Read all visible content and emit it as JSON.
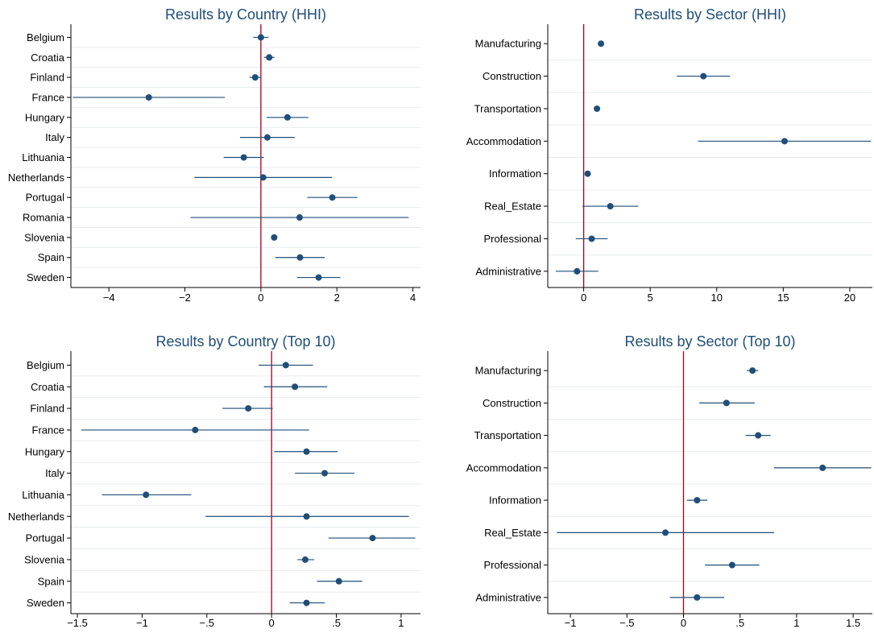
{
  "colors": {
    "background": "#ffffff",
    "plot_background": "#ffffff",
    "gridline": "#e6ebef",
    "axis": "#000000",
    "marker": "#1f4e79",
    "ci_line": "#1f4e79",
    "zero_line": "#a6001a",
    "title": "#1f4e79",
    "text": "#000000"
  },
  "chart_data": [
    {
      "id": "country-hhi",
      "type": "scatter",
      "subtype": "coefficient-plot",
      "title": "Results by Country (HHI)",
      "reference_line": 0,
      "xlim": [
        -5,
        4.2
      ],
      "xticks": [
        -4,
        -2,
        0,
        2,
        4
      ],
      "xtick_labels": [
        "−4",
        "−2",
        "0",
        "2",
        "4"
      ],
      "grid": "horizontal",
      "categories": [
        "Belgium",
        "Croatia",
        "Finland",
        "France",
        "Hungary",
        "Italy",
        "Lithuania",
        "Netherlands",
        "Portugal",
        "Romania",
        "Slovenia",
        "Spain",
        "Sweden"
      ],
      "estimates": [
        0.0,
        0.22,
        -0.15,
        -2.95,
        0.7,
        0.17,
        -0.45,
        0.06,
        1.88,
        1.02,
        0.35,
        1.03,
        1.52
      ],
      "ci_low": [
        -0.2,
        0.08,
        -0.3,
        -4.95,
        0.15,
        -0.55,
        -0.98,
        -1.75,
        1.22,
        -1.85,
        0.28,
        0.38,
        0.95
      ],
      "ci_high": [
        0.2,
        0.36,
        0.0,
        -0.95,
        1.25,
        0.89,
        0.08,
        1.87,
        2.54,
        3.89,
        0.42,
        1.68,
        2.09
      ]
    },
    {
      "id": "sector-hhi",
      "type": "scatter",
      "subtype": "coefficient-plot",
      "title": "Results by Sector (HHI)",
      "reference_line": 0,
      "xlim": [
        -2.7,
        21.7
      ],
      "xticks": [
        0,
        5,
        10,
        15,
        20
      ],
      "xtick_labels": [
        "0",
        "5",
        "10",
        "15",
        "20"
      ],
      "grid": "horizontal",
      "categories": [
        "Manufacturing",
        "Construction",
        "Transportation",
        "Accommodation",
        "Information",
        "Real_Estate",
        "Professional",
        "Administrative"
      ],
      "estimates": [
        1.3,
        9.0,
        1.0,
        15.1,
        0.3,
        2.0,
        0.6,
        -0.5
      ],
      "ci_low": [
        1.1,
        7.0,
        0.8,
        8.6,
        0.1,
        -0.1,
        -0.6,
        -2.1
      ],
      "ci_high": [
        1.5,
        11.0,
        1.2,
        21.6,
        0.5,
        4.1,
        1.8,
        1.1
      ]
    },
    {
      "id": "country-top10",
      "type": "scatter",
      "subtype": "coefficient-plot",
      "title": "Results by Country (Top 10)",
      "reference_line": 0,
      "xlim": [
        -1.55,
        1.15
      ],
      "xticks": [
        -1.5,
        -1,
        -0.5,
        0,
        0.5,
        1
      ],
      "xtick_labels": [
        "−1.5",
        "−1",
        "−.5",
        "0",
        ".5",
        "1"
      ],
      "grid": "horizontal",
      "categories": [
        "Belgium",
        "Croatia",
        "Finland",
        "France",
        "Hungary",
        "Italy",
        "Lithuania",
        "Netherlands",
        "Portugal",
        "Slovenia",
        "Spain",
        "Sweden"
      ],
      "estimates": [
        0.11,
        0.18,
        -0.18,
        -0.59,
        0.27,
        0.41,
        -0.97,
        0.27,
        0.78,
        0.26,
        0.52,
        0.27
      ],
      "ci_low": [
        -0.1,
        -0.06,
        -0.38,
        -1.47,
        0.02,
        0.18,
        -1.31,
        -0.51,
        0.44,
        0.2,
        0.35,
        0.14
      ],
      "ci_high": [
        0.32,
        0.43,
        0.01,
        0.29,
        0.51,
        0.64,
        -0.62,
        1.06,
        1.11,
        0.33,
        0.7,
        0.41
      ]
    },
    {
      "id": "sector-top10",
      "type": "scatter",
      "subtype": "coefficient-plot",
      "title": "Results by Sector (Top 10)",
      "reference_line": 0,
      "xlim": [
        -1.2,
        1.67
      ],
      "xticks": [
        -1,
        -0.5,
        0,
        0.5,
        1,
        1.5
      ],
      "xtick_labels": [
        "−1",
        "−.5",
        "0",
        ".5",
        "1",
        "1.5"
      ],
      "grid": "horizontal",
      "categories": [
        "Manufacturing",
        "Construction",
        "Transportation",
        "Accommodation",
        "Information",
        "Real_Estate",
        "Professional",
        "Administrative"
      ],
      "estimates": [
        0.61,
        0.38,
        0.66,
        1.23,
        0.12,
        -0.16,
        0.43,
        0.12
      ],
      "ci_low": [
        0.56,
        0.14,
        0.55,
        0.8,
        0.03,
        -1.12,
        0.19,
        -0.12
      ],
      "ci_high": [
        0.66,
        0.63,
        0.77,
        1.66,
        0.21,
        0.8,
        0.67,
        0.36
      ]
    }
  ]
}
